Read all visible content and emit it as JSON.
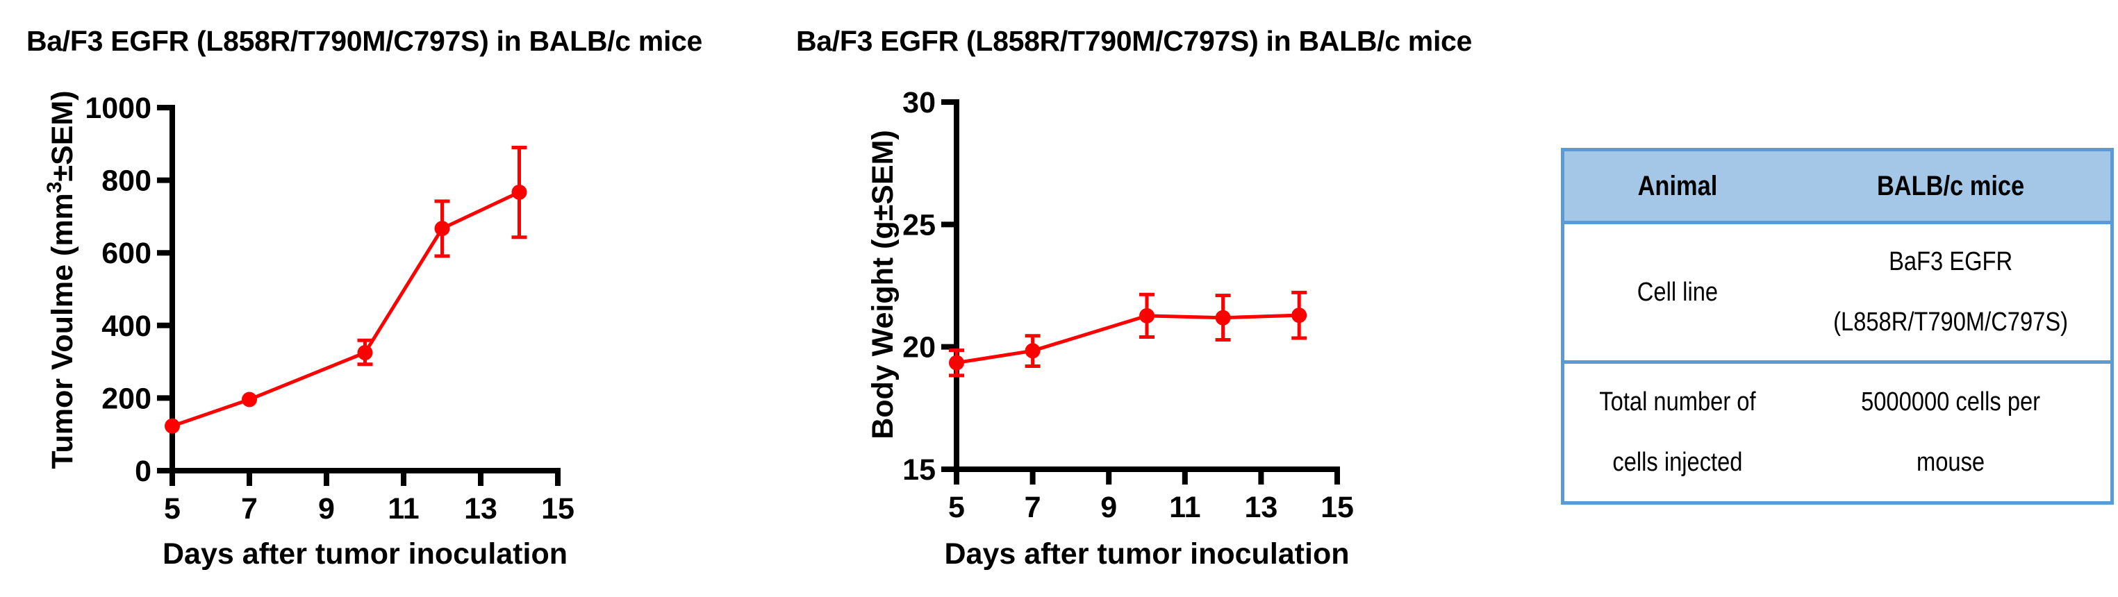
{
  "figures": {
    "left_title": "Ba/F3 EGFR (L858R/T790M/C797S) in BALB/c mice",
    "right_title": "Ba/F3 EGFR (L858R/T790M/C797S) in BALB/c mice"
  },
  "colors": {
    "series": "#ff0000",
    "axis": "#000000",
    "table_header_bg": "#a4c6e7",
    "table_border": "#5b9bd5"
  },
  "chart_data": [
    {
      "type": "line",
      "title": "Ba/F3 EGFR (L858R/T790M/C797S) in BALB/c mice",
      "xlabel": "Days after tumor inoculation",
      "ylabel": "Tumor Voulme (mm³±SEM)",
      "ylabel_parts": {
        "pre": "Tumor Voulme (mm",
        "sup": "3",
        "post": "±SEM)"
      },
      "xlim": [
        5,
        15
      ],
      "ylim": [
        0,
        1000
      ],
      "xticks": [
        5,
        7,
        9,
        11,
        13,
        15
      ],
      "yticks": [
        0,
        200,
        400,
        600,
        800,
        1000
      ],
      "grid": false,
      "legend": null,
      "series": [
        {
          "name": "Tumor volume",
          "color": "#ff0000",
          "x": [
            5,
            7,
            10,
            12,
            14
          ],
          "y": [
            123,
            196,
            325,
            667,
            767
          ],
          "err_low": [
            123,
            196,
            293,
            591,
            643
          ],
          "err_high": [
            123,
            196,
            359,
            742,
            890
          ]
        }
      ]
    },
    {
      "type": "line",
      "title": "Ba/F3 EGFR (L858R/T790M/C797S) in BALB/c mice",
      "xlabel": "Days after tumor inoculation",
      "ylabel": "Body Weight (g±SEM)",
      "xlim": [
        5,
        15
      ],
      "ylim": [
        15,
        30
      ],
      "xticks": [
        5,
        7,
        9,
        11,
        13,
        15
      ],
      "yticks": [
        15,
        20,
        25,
        30
      ],
      "grid": false,
      "legend": null,
      "series": [
        {
          "name": "Body weight",
          "color": "#ff0000",
          "x": [
            5,
            7,
            10,
            12,
            14
          ],
          "y": [
            19.35,
            19.84,
            21.27,
            21.19,
            21.29
          ],
          "err_low": [
            18.83,
            19.21,
            20.4,
            20.29,
            20.36
          ],
          "err_high": [
            19.86,
            20.45,
            22.14,
            22.1,
            22.22
          ]
        }
      ]
    }
  ],
  "table": {
    "header": [
      "Animal",
      "BALB/c mice"
    ],
    "rows": [
      {
        "label": [
          "Cell line"
        ],
        "value": [
          "BaF3 EGFR",
          "(L858R/T790M/C797S)"
        ]
      },
      {
        "label": [
          "Total number of",
          "cells injected"
        ],
        "value": [
          "5000000 cells per",
          "mouse"
        ]
      }
    ]
  }
}
